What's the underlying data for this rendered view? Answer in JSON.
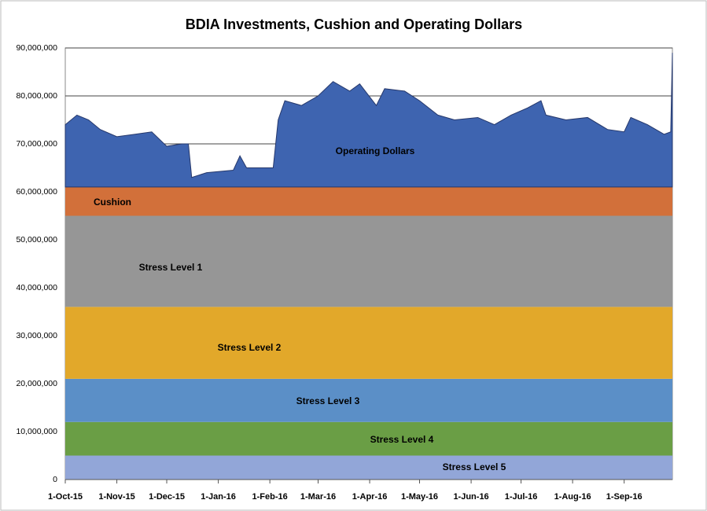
{
  "chart_data": {
    "type": "stacked_area",
    "title": "BDIA Investments, Cushion and Operating Dollars",
    "x": [
      "2015-10-01",
      "2015-10-08",
      "2015-10-15",
      "2015-10-22",
      "2015-11-01",
      "2015-11-12",
      "2015-11-22",
      "2015-12-01",
      "2015-12-10",
      "2015-12-14",
      "2015-12-16",
      "2015-12-25",
      "2016-01-10",
      "2016-01-14",
      "2016-01-18",
      "2016-02-03",
      "2016-02-06",
      "2016-02-10",
      "2016-02-20",
      "2016-03-01",
      "2016-03-10",
      "2016-03-20",
      "2016-03-26",
      "2016-04-05",
      "2016-04-10",
      "2016-04-22",
      "2016-05-01",
      "2016-05-12",
      "2016-05-22",
      "2016-06-05",
      "2016-06-15",
      "2016-06-25",
      "2016-07-05",
      "2016-07-13",
      "2016-07-16",
      "2016-07-28",
      "2016-08-10",
      "2016-08-22",
      "2016-09-01",
      "2016-09-05",
      "2016-09-15",
      "2016-09-25",
      "2016-09-29",
      "2016-09-30"
    ],
    "series": [
      {
        "name": "Stress Level 5",
        "color": "#92a6d8",
        "values": [
          5000000,
          5000000,
          5000000,
          5000000,
          5000000,
          5000000,
          5000000,
          5000000,
          5000000,
          5000000,
          5000000,
          5000000,
          5000000,
          5000000,
          5000000,
          5000000,
          5000000,
          5000000,
          5000000,
          5000000,
          5000000,
          5000000,
          5000000,
          5000000,
          5000000,
          5000000,
          5000000,
          5000000,
          5000000,
          5000000,
          5000000,
          5000000,
          5000000,
          5000000,
          5000000,
          5000000,
          5000000,
          5000000,
          5000000,
          5000000,
          5000000,
          5000000,
          5000000,
          5000000
        ]
      },
      {
        "name": "Stress Level 4",
        "color": "#6a9e45",
        "values": [
          7000000,
          7000000,
          7000000,
          7000000,
          7000000,
          7000000,
          7000000,
          7000000,
          7000000,
          7000000,
          7000000,
          7000000,
          7000000,
          7000000,
          7000000,
          7000000,
          7000000,
          7000000,
          7000000,
          7000000,
          7000000,
          7000000,
          7000000,
          7000000,
          7000000,
          7000000,
          7000000,
          7000000,
          7000000,
          7000000,
          7000000,
          7000000,
          7000000,
          7000000,
          7000000,
          7000000,
          7000000,
          7000000,
          7000000,
          7000000,
          7000000,
          7000000,
          7000000,
          7000000
        ]
      },
      {
        "name": "Stress Level 3",
        "color": "#5b8fc7",
        "values": [
          9000000,
          9000000,
          9000000,
          9000000,
          9000000,
          9000000,
          9000000,
          9000000,
          9000000,
          9000000,
          9000000,
          9000000,
          9000000,
          9000000,
          9000000,
          9000000,
          9000000,
          9000000,
          9000000,
          9000000,
          9000000,
          9000000,
          9000000,
          9000000,
          9000000,
          9000000,
          9000000,
          9000000,
          9000000,
          9000000,
          9000000,
          9000000,
          9000000,
          9000000,
          9000000,
          9000000,
          9000000,
          9000000,
          9000000,
          9000000,
          9000000,
          9000000,
          9000000,
          9000000
        ]
      },
      {
        "name": "Stress Level 2",
        "color": "#e2a82a",
        "values": [
          15000000,
          15000000,
          15000000,
          15000000,
          15000000,
          15000000,
          15000000,
          15000000,
          15000000,
          15000000,
          15000000,
          15000000,
          15000000,
          15000000,
          15000000,
          15000000,
          15000000,
          15000000,
          15000000,
          15000000,
          15000000,
          15000000,
          15000000,
          15000000,
          15000000,
          15000000,
          15000000,
          15000000,
          15000000,
          15000000,
          15000000,
          15000000,
          15000000,
          15000000,
          15000000,
          15000000,
          15000000,
          15000000,
          15000000,
          15000000,
          15000000,
          15000000,
          15000000,
          15000000
        ]
      },
      {
        "name": "Stress Level 1",
        "color": "#969696",
        "values": [
          19000000,
          19000000,
          19000000,
          19000000,
          19000000,
          19000000,
          19000000,
          19000000,
          19000000,
          19000000,
          19000000,
          19000000,
          19000000,
          19000000,
          19000000,
          19000000,
          19000000,
          19000000,
          19000000,
          19000000,
          19000000,
          19000000,
          19000000,
          19000000,
          19000000,
          19000000,
          19000000,
          19000000,
          19000000,
          19000000,
          19000000,
          19000000,
          19000000,
          19000000,
          19000000,
          19000000,
          19000000,
          19000000,
          19000000,
          19000000,
          19000000,
          19000000,
          19000000,
          19000000
        ]
      },
      {
        "name": "Cushion",
        "color": "#d2703a",
        "values": [
          6000000,
          6000000,
          6000000,
          6000000,
          6000000,
          6000000,
          6000000,
          6000000,
          6000000,
          6000000,
          6000000,
          6000000,
          6000000,
          6000000,
          6000000,
          6000000,
          6000000,
          6000000,
          6000000,
          6000000,
          6000000,
          6000000,
          6000000,
          6000000,
          6000000,
          6000000,
          6000000,
          6000000,
          6000000,
          6000000,
          6000000,
          6000000,
          6000000,
          6000000,
          6000000,
          6000000,
          6000000,
          6000000,
          6000000,
          6000000,
          6000000,
          6000000,
          6000000,
          6000000
        ]
      },
      {
        "name": "Operating  Dollars",
        "color": "#3e64b0",
        "values": [
          13000000,
          15000000,
          14000000,
          12000000,
          10500000,
          11000000,
          11500000,
          8500000,
          9000000,
          9000000,
          2000000,
          3000000,
          3500000,
          6500000,
          4000000,
          4000000,
          14000000,
          18000000,
          17000000,
          19000000,
          22000000,
          20000000,
          21500000,
          17000000,
          20500000,
          20000000,
          18000000,
          15000000,
          14000000,
          14500000,
          13000000,
          15000000,
          16500000,
          18000000,
          15000000,
          14000000,
          14500000,
          12000000,
          11500000,
          14500000,
          13000000,
          11000000,
          11500000,
          28000000
        ]
      }
    ],
    "xlim": [
      "2015-10-01",
      "2016-09-30"
    ],
    "xticks": [
      {
        "value": "2015-10-01",
        "label": "1-Oct-15"
      },
      {
        "value": "2015-11-01",
        "label": "1-Nov-15"
      },
      {
        "value": "2015-12-01",
        "label": "1-Dec-15"
      },
      {
        "value": "2016-01-01",
        "label": "1-Jan-16"
      },
      {
        "value": "2016-02-01",
        "label": "1-Feb-16"
      },
      {
        "value": "2016-03-01",
        "label": "1-Mar-16"
      },
      {
        "value": "2016-04-01",
        "label": "1-Apr-16"
      },
      {
        "value": "2016-05-01",
        "label": "1-May-16"
      },
      {
        "value": "2016-06-01",
        "label": "1-Jun-16"
      },
      {
        "value": "2016-07-01",
        "label": "1-Jul-16"
      },
      {
        "value": "2016-08-01",
        "label": "1-Aug-16"
      },
      {
        "value": "2016-09-01",
        "label": "1-Sep-16"
      }
    ],
    "ylim": [
      0,
      90000000
    ],
    "yticks": [
      0,
      {
        "value": 10000000,
        "label": "10,000,000"
      },
      {
        "value": 20000000,
        "label": "20,000,000"
      },
      {
        "value": 30000000,
        "label": "30,000,000"
      },
      {
        "value": 40000000,
        "label": "40,000,000"
      },
      {
        "value": 50000000,
        "label": "50,000,000"
      },
      {
        "value": 60000000,
        "label": "60,000,000"
      },
      {
        "value": 70000000,
        "label": "70,000,000"
      },
      {
        "value": 80000000,
        "label": "80,000,000"
      },
      {
        "value": 90000000,
        "label": "90,000,000"
      }
    ],
    "grid": true
  }
}
